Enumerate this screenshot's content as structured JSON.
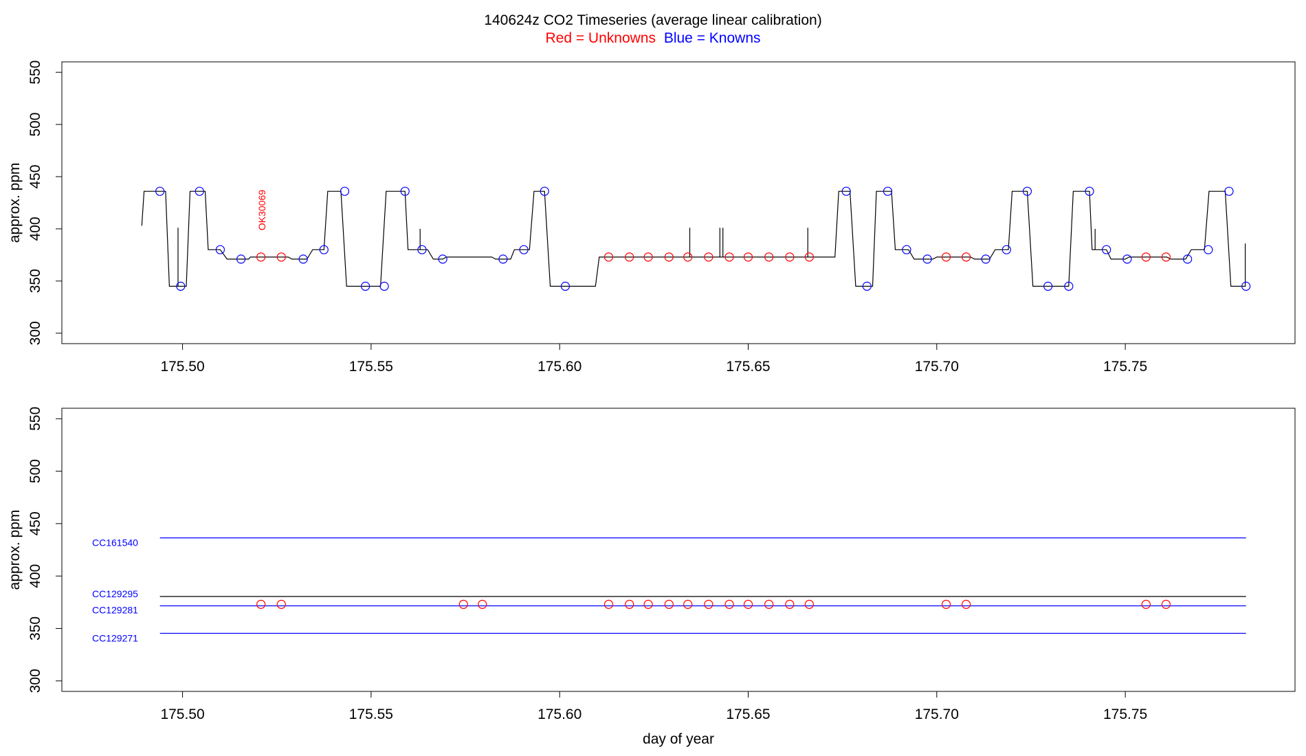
{
  "header": {
    "title": "140624z    CO2 Timeseries (average linear calibration)",
    "legend_red": "Red = Unknowns",
    "legend_blue": "Blue = Knowns"
  },
  "colors": {
    "unknown": "#ff0000",
    "known": "#0000ff",
    "trace": "#000000"
  },
  "chart_data": [
    {
      "type": "line",
      "xlabel": "",
      "ylabel": "approx. ppm",
      "xlim": [
        175.468,
        175.795
      ],
      "ylim": [
        290,
        560
      ],
      "x_ticks": [
        "175.50",
        "175.55",
        "175.60",
        "175.65",
        "175.70",
        "175.75"
      ],
      "x_tick_values": [
        175.5,
        175.55,
        175.6,
        175.65,
        175.7,
        175.75
      ],
      "y_ticks": [
        "300",
        "350",
        "400",
        "450",
        "500",
        "550"
      ],
      "y_tick_values": [
        300,
        350,
        400,
        450,
        500,
        550
      ],
      "trace_segments": [
        [
          175.4892,
          403
        ],
        [
          175.4898,
          436
        ],
        [
          175.4955,
          436
        ],
        [
          175.4965,
          345
        ],
        [
          175.4988,
          345
        ],
        [
          175.4988,
          401
        ],
        [
          175.4988,
          345
        ],
        [
          175.501,
          345
        ],
        [
          175.502,
          436
        ],
        [
          175.506,
          436
        ],
        [
          175.5068,
          380
        ],
        [
          175.51,
          380
        ],
        [
          175.5118,
          371
        ],
        [
          175.5175,
          371
        ],
        [
          175.518,
          373
        ],
        [
          175.528,
          373
        ],
        [
          175.529,
          371
        ],
        [
          175.533,
          371
        ],
        [
          175.5345,
          380
        ],
        [
          175.5375,
          380
        ],
        [
          175.5385,
          436
        ],
        [
          175.542,
          436
        ],
        [
          175.5435,
          345
        ],
        [
          175.5525,
          345
        ],
        [
          175.554,
          436
        ],
        [
          175.559,
          436
        ],
        [
          175.5598,
          380
        ],
        [
          175.563,
          380
        ],
        [
          175.563,
          400
        ],
        [
          175.563,
          380
        ],
        [
          175.565,
          380
        ],
        [
          175.5665,
          371
        ],
        [
          175.569,
          371
        ],
        [
          175.57,
          373
        ],
        [
          175.582,
          373
        ],
        [
          175.583,
          371
        ],
        [
          175.587,
          371
        ],
        [
          175.588,
          380
        ],
        [
          175.592,
          380
        ],
        [
          175.5932,
          436
        ],
        [
          175.596,
          436
        ],
        [
          175.5975,
          345
        ],
        [
          175.6095,
          345
        ],
        [
          175.6105,
          373
        ],
        [
          175.6345,
          373
        ],
        [
          175.6345,
          401
        ],
        [
          175.6345,
          373
        ],
        [
          175.6425,
          373
        ],
        [
          175.6425,
          401
        ],
        [
          175.6425,
          373
        ],
        [
          175.6433,
          373
        ],
        [
          175.6433,
          401
        ],
        [
          175.6433,
          373
        ],
        [
          175.6658,
          373
        ],
        [
          175.6658,
          401
        ],
        [
          175.6658,
          373
        ],
        [
          175.673,
          373
        ],
        [
          175.674,
          436
        ],
        [
          175.677,
          436
        ],
        [
          175.6785,
          345
        ],
        [
          175.683,
          345
        ],
        [
          175.684,
          436
        ],
        [
          175.688,
          436
        ],
        [
          175.689,
          380
        ],
        [
          175.6925,
          380
        ],
        [
          175.694,
          371
        ],
        [
          175.699,
          371
        ],
        [
          175.7,
          373
        ],
        [
          175.709,
          373
        ],
        [
          175.71,
          371
        ],
        [
          175.714,
          371
        ],
        [
          175.7155,
          380
        ],
        [
          175.719,
          380
        ],
        [
          175.72,
          436
        ],
        [
          175.724,
          436
        ],
        [
          175.7255,
          345
        ],
        [
          175.735,
          345
        ],
        [
          175.7362,
          436
        ],
        [
          175.7405,
          436
        ],
        [
          175.7412,
          380
        ],
        [
          175.742,
          380
        ],
        [
          175.742,
          400
        ],
        [
          175.742,
          380
        ],
        [
          175.745,
          380
        ],
        [
          175.7462,
          371
        ],
        [
          175.75,
          371
        ],
        [
          175.751,
          373
        ],
        [
          175.761,
          373
        ],
        [
          175.762,
          371
        ],
        [
          175.766,
          371
        ],
        [
          175.7675,
          380
        ],
        [
          175.771,
          380
        ],
        [
          175.7722,
          436
        ],
        [
          175.7765,
          436
        ],
        [
          175.778,
          345
        ],
        [
          175.7818,
          345
        ],
        [
          175.7818,
          386
        ]
      ],
      "knowns": {
        "x": [
          175.494,
          175.4995,
          175.5045,
          175.51,
          175.5155,
          175.532,
          175.5375,
          175.543,
          175.5485,
          175.5535,
          175.559,
          175.5635,
          175.569,
          175.585,
          175.5905,
          175.596,
          175.6015,
          175.676,
          175.6815,
          175.687,
          175.692,
          175.6975,
          175.713,
          175.7185,
          175.724,
          175.7295,
          175.735,
          175.7405,
          175.745,
          175.7505,
          175.7665,
          175.772,
          175.7775,
          175.782
        ],
        "y": [
          436,
          345,
          436,
          380,
          371,
          371,
          380,
          436,
          345,
          345,
          436,
          380,
          371,
          371,
          380,
          436,
          345,
          436,
          345,
          436,
          380,
          371,
          371,
          380,
          436,
          345,
          345,
          436,
          380,
          371,
          371,
          380,
          436,
          345
        ]
      },
      "unknowns": {
        "x": [
          175.5208,
          175.5262,
          175.613,
          175.6185,
          175.6235,
          175.629,
          175.634,
          175.6395,
          175.645,
          175.65,
          175.6555,
          175.661,
          175.6662,
          175.7025,
          175.7078,
          175.7555,
          175.7608
        ],
        "y": [
          373,
          373,
          373,
          373,
          373,
          373,
          373,
          373,
          373,
          373,
          373,
          373,
          373,
          373,
          373,
          373,
          373
        ]
      },
      "annotations": [
        {
          "text": "OK30069",
          "x": 175.521,
          "y": 418,
          "color": "#ff0000"
        }
      ]
    },
    {
      "type": "line",
      "xlabel": "day of year",
      "ylabel": "approx. ppm",
      "xlim": [
        175.468,
        175.795
      ],
      "ylim": [
        290,
        560
      ],
      "x_ticks": [
        "175.50",
        "175.55",
        "175.60",
        "175.65",
        "175.70",
        "175.75"
      ],
      "x_tick_values": [
        175.5,
        175.55,
        175.6,
        175.65,
        175.7,
        175.75
      ],
      "y_ticks": [
        "300",
        "350",
        "400",
        "450",
        "500",
        "550"
      ],
      "y_tick_values": [
        300,
        350,
        400,
        450,
        500,
        550
      ],
      "reference_lines": [
        {
          "name": "CC161540",
          "y": 436.4,
          "color": "#0000ff"
        },
        {
          "name": "CC129295",
          "y": 380.5,
          "color": "#000000"
        },
        {
          "name": "CC129281",
          "y": 371.6,
          "color": "#0000ff"
        },
        {
          "name": "CC129271",
          "y": 345.4,
          "color": "#0000ff"
        }
      ],
      "line_x_range": [
        175.494,
        175.782
      ],
      "unknowns": {
        "x": [
          175.5208,
          175.5262,
          175.5745,
          175.5795,
          175.613,
          175.6185,
          175.6235,
          175.629,
          175.634,
          175.6395,
          175.645,
          175.65,
          175.6555,
          175.661,
          175.6662,
          175.7025,
          175.7078,
          175.7555,
          175.7608
        ],
        "y": [
          373,
          373,
          373,
          373,
          373,
          373,
          373,
          373,
          373,
          373,
          373,
          373,
          373,
          373,
          373,
          373,
          373,
          373,
          373
        ]
      }
    }
  ]
}
